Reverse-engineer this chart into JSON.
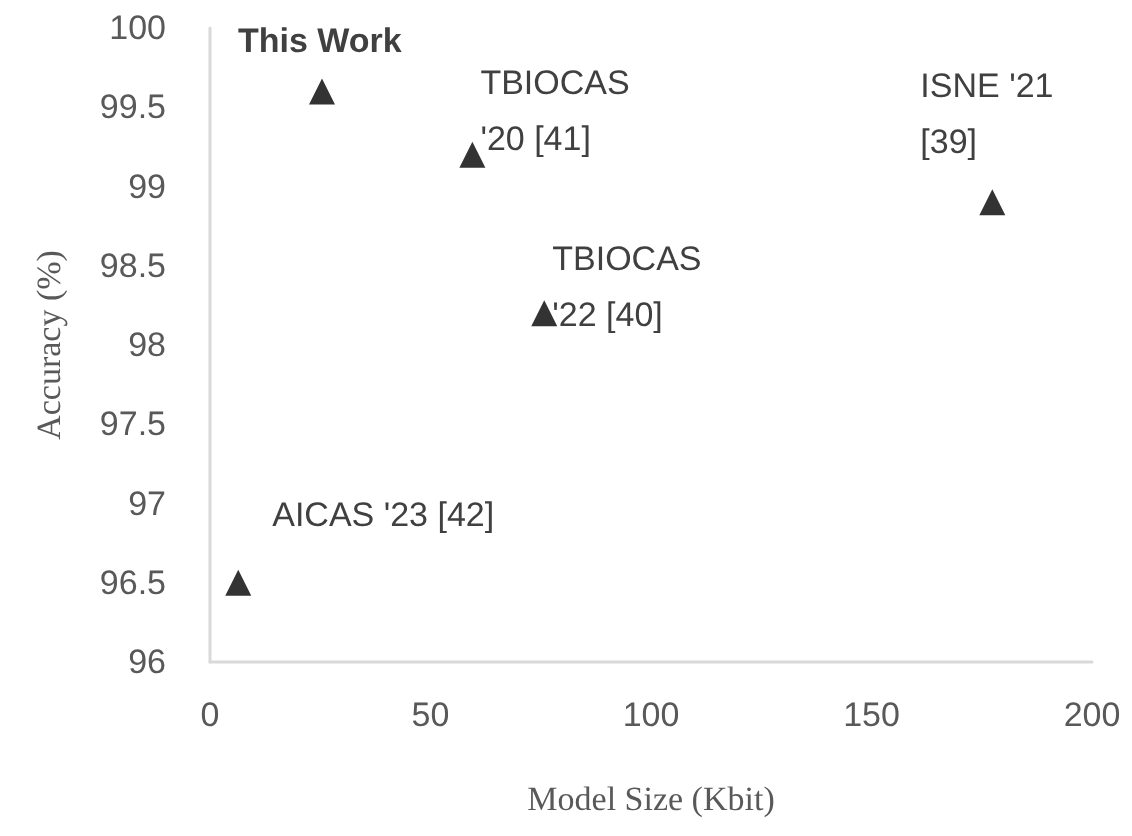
{
  "chart_data": {
    "type": "scatter",
    "xlabel": "Model Size (Kbit)",
    "ylabel": "Accuracy (%)",
    "x": [
      25.4,
      59.5,
      75.8,
      177.4,
      6.4
    ],
    "series": [
      {
        "color": "#000000",
        "marker": "triangle",
        "values": [
          99.6,
          99.2,
          98.2,
          98.9,
          96.5
        ]
      }
    ],
    "xlim": [
      0,
      200
    ],
    "xticks": [
      0,
      50,
      100,
      150,
      200
    ],
    "ylim": [
      96,
      100
    ],
    "yticks": [
      96,
      96.5,
      97,
      97.5,
      98,
      98.5,
      99,
      99.5,
      100
    ],
    "grid": false,
    "annotations": [
      {
        "text": "This Work",
        "x": 25.4,
        "y": 99.6
      },
      {
        "text": "TBIOCAS '20 [41]",
        "x": 59.5,
        "y": 99.2
      },
      {
        "text": "TBIOCAS '22 [40]",
        "x": 75.8,
        "y": 98.2
      },
      {
        "text": "ISNE '21 [39]",
        "x": 177.4,
        "y": 98.9
      },
      {
        "text": "AICAS '23 [42]",
        "x": 6.4,
        "y": 96.5
      }
    ]
  }
}
